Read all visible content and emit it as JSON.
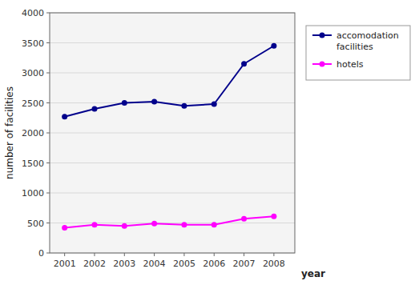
{
  "chart_data": {
    "type": "line",
    "x": [
      2001,
      2002,
      2003,
      2004,
      2005,
      2006,
      2007,
      2008
    ],
    "xlim": [
      2000.5,
      2008.7
    ],
    "xticks": [
      2001,
      2002,
      2003,
      2004,
      2005,
      2006,
      2007,
      2008
    ],
    "ylim": [
      0,
      4000
    ],
    "yticks": [
      0,
      500,
      1000,
      1500,
      2000,
      2500,
      3000,
      3500,
      4000
    ],
    "x_label": "year",
    "y_label": "number of facilities",
    "grid": true,
    "legend": "right",
    "marker": "circle",
    "series": [
      {
        "name": "accomodation\nfacilities",
        "color": "#00008B",
        "values": [
          2270,
          2400,
          2500,
          2520,
          2450,
          2480,
          3150,
          3450
        ]
      },
      {
        "name": "hotels",
        "color": "#FF00FF",
        "values": [
          420,
          470,
          450,
          490,
          470,
          470,
          570,
          610
        ]
      }
    ]
  }
}
